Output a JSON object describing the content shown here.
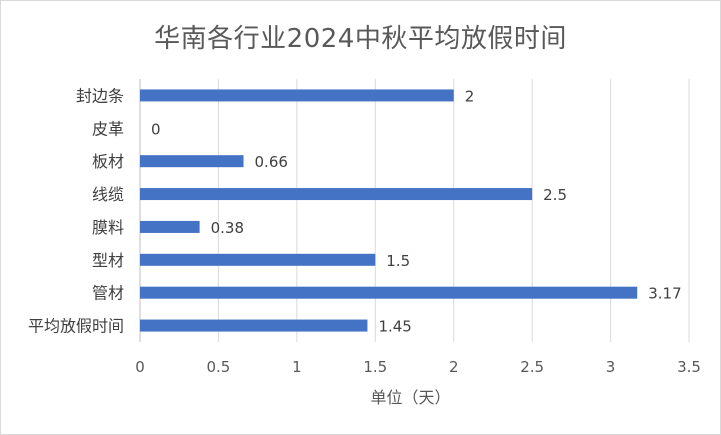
{
  "chart_data": {
    "type": "bar",
    "orientation": "horizontal",
    "title": "华南各行业2024中秋平均放假时间",
    "xlabel": "单位（天）",
    "ylabel": "",
    "categories": [
      "平均放假时间",
      "管材",
      "型材",
      "膜料",
      "线缆",
      "板材",
      "皮革",
      "封边条"
    ],
    "values": [
      1.45,
      3.17,
      1.5,
      0.38,
      2.5,
      0.66,
      0,
      2
    ],
    "data_labels": [
      "1.45",
      "3.17",
      "1.5",
      "0.38",
      "2.5",
      "0.66",
      "0",
      "2"
    ],
    "xlim": [
      0,
      3.5
    ],
    "x_ticks": [
      "0",
      "0.5",
      "1",
      "1.5",
      "2",
      "2.5",
      "3",
      "3.5"
    ],
    "bar_color": "#4472c4",
    "grid": true,
    "legend": "none"
  }
}
